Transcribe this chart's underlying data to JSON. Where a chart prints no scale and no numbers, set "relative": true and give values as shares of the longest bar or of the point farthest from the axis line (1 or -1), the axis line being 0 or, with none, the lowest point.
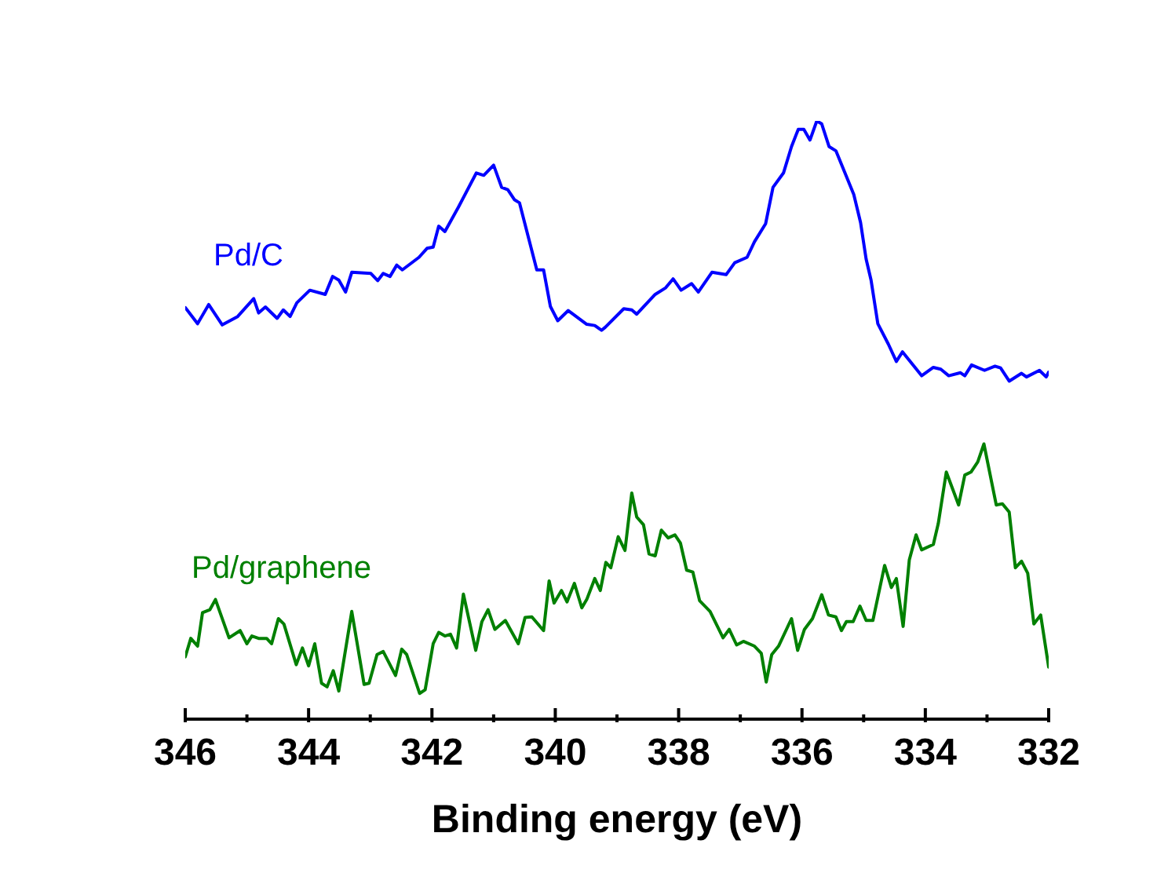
{
  "chart_data": {
    "type": "line",
    "xlabel": "Binding energy (eV)",
    "relative": true,
    "xlim": [
      346,
      332
    ],
    "xticks": [
      346,
      {
        "value": 345,
        "label": null
      },
      344,
      {
        "value": 343,
        "label": null
      },
      342,
      {
        "value": 341,
        "label": null
      },
      340,
      {
        "value": 339,
        "label": null
      },
      338,
      {
        "value": 337,
        "label": null
      },
      336,
      {
        "value": 335,
        "label": null
      },
      334,
      {
        "value": 333,
        "label": null
      },
      332
    ],
    "grid": false,
    "legend": false,
    "marker": "none",
    "line_style": "solid",
    "series": [
      {
        "name": "Pd/C",
        "color": "#0000ff",
        "x": [
          346.0,
          345.8,
          345.62,
          345.4,
          345.15,
          344.89,
          344.81,
          344.7,
          344.51,
          344.41,
          344.3,
          344.19,
          343.98,
          343.73,
          343.61,
          343.51,
          343.4,
          343.3,
          342.99,
          342.88,
          342.79,
          342.68,
          342.57,
          342.48,
          342.21,
          342.08,
          341.98,
          341.89,
          341.79,
          341.57,
          341.28,
          341.16,
          341.0,
          340.87,
          340.77,
          340.66,
          340.58,
          340.3,
          340.19,
          340.08,
          339.96,
          339.79,
          339.49,
          339.36,
          339.25,
          339.19,
          338.89,
          338.76,
          338.68,
          338.38,
          338.21,
          338.09,
          337.96,
          337.79,
          337.68,
          337.46,
          337.23,
          337.09,
          336.89,
          336.77,
          336.59,
          336.47,
          336.3,
          336.17,
          336.06,
          335.97,
          335.87,
          335.76,
          335.68,
          335.56,
          335.45,
          335.16,
          335.05,
          334.96,
          334.88,
          334.77,
          334.6,
          334.47,
          334.37,
          334.06,
          333.87,
          333.75,
          333.62,
          333.43,
          333.36,
          333.25,
          333.04,
          332.87,
          332.78,
          332.64,
          332.44,
          332.36,
          332.15,
          332.04,
          332.0
        ],
        "values": [
          0.688,
          0.661,
          0.693,
          0.659,
          0.673,
          0.703,
          0.679,
          0.689,
          0.67,
          0.684,
          0.673,
          0.696,
          0.717,
          0.71,
          0.74,
          0.734,
          0.714,
          0.747,
          0.745,
          0.733,
          0.745,
          0.74,
          0.759,
          0.751,
          0.772,
          0.787,
          0.789,
          0.824,
          0.815,
          0.856,
          0.913,
          0.909,
          0.926,
          0.889,
          0.885,
          0.868,
          0.863,
          0.751,
          0.751,
          0.69,
          0.666,
          0.683,
          0.66,
          0.658,
          0.65,
          0.655,
          0.686,
          0.684,
          0.677,
          0.71,
          0.721,
          0.736,
          0.717,
          0.728,
          0.714,
          0.747,
          0.743,
          0.763,
          0.772,
          0.798,
          0.828,
          0.889,
          0.913,
          0.957,
          0.986,
          0.986,
          0.968,
          1,
          0.995,
          0.957,
          0.95,
          0.877,
          0.83,
          0.769,
          0.734,
          0.661,
          0.627,
          0.598,
          0.614,
          0.574,
          0.588,
          0.585,
          0.574,
          0.579,
          0.574,
          0.592,
          0.583,
          0.59,
          0.587,
          0.565,
          0.578,
          0.572,
          0.583,
          0.572,
          0.58
        ]
      },
      {
        "name": "Pd/graphene",
        "color": "#008000",
        "x": [
          346.0,
          345.91,
          345.8,
          345.72,
          345.6,
          345.51,
          345.29,
          345.11,
          345.0,
          344.92,
          344.81,
          344.68,
          344.6,
          344.49,
          344.4,
          344.2,
          344.1,
          344.0,
          343.9,
          343.79,
          343.7,
          343.6,
          343.51,
          343.3,
          343.1,
          343.02,
          342.89,
          342.79,
          342.59,
          342.49,
          342.41,
          342.2,
          342.11,
          341.98,
          341.89,
          341.79,
          341.7,
          341.6,
          341.49,
          341.29,
          341.19,
          341.09,
          340.98,
          340.81,
          340.6,
          340.49,
          340.38,
          340.19,
          340.1,
          340.02,
          339.9,
          339.81,
          339.69,
          339.57,
          339.49,
          339.36,
          339.27,
          339.18,
          339.1,
          338.98,
          338.87,
          338.76,
          338.68,
          338.57,
          338.48,
          338.38,
          338.28,
          338.17,
          338.06,
          337.97,
          337.87,
          337.77,
          337.66,
          337.49,
          337.28,
          337.18,
          337.06,
          336.95,
          336.77,
          336.66,
          336.58,
          336.49,
          336.38,
          336.17,
          336.07,
          335.96,
          335.83,
          335.68,
          335.57,
          335.45,
          335.36,
          335.28,
          335.17,
          335.06,
          334.96,
          334.85,
          334.66,
          334.55,
          334.47,
          334.36,
          334.26,
          334.15,
          334.06,
          333.87,
          333.79,
          333.66,
          333.46,
          333.36,
          333.26,
          333.15,
          333.05,
          332.85,
          332.75,
          332.64,
          332.54,
          332.44,
          332.34,
          332.24,
          332.13,
          332.0
        ],
        "values": [
          0.104,
          0.135,
          0.122,
          0.178,
          0.183,
          0.2,
          0.136,
          0.148,
          0.126,
          0.139,
          0.135,
          0.135,
          0.126,
          0.168,
          0.159,
          0.091,
          0.119,
          0.089,
          0.126,
          0.06,
          0.054,
          0.081,
          0.047,
          0.18,
          0.058,
          0.06,
          0.108,
          0.113,
          0.073,
          0.117,
          0.108,
          0.043,
          0.049,
          0.126,
          0.145,
          0.139,
          0.142,
          0.119,
          0.209,
          0.115,
          0.163,
          0.183,
          0.15,
          0.165,
          0.126,
          0.17,
          0.171,
          0.148,
          0.231,
          0.194,
          0.215,
          0.196,
          0.227,
          0.186,
          0.2,
          0.235,
          0.215,
          0.262,
          0.253,
          0.305,
          0.282,
          0.378,
          0.338,
          0.325,
          0.276,
          0.273,
          0.316,
          0.303,
          0.308,
          0.294,
          0.249,
          0.246,
          0.198,
          0.18,
          0.136,
          0.15,
          0.124,
          0.13,
          0.122,
          0.11,
          0.062,
          0.108,
          0.122,
          0.168,
          0.115,
          0.15,
          0.168,
          0.208,
          0.174,
          0.171,
          0.148,
          0.163,
          0.163,
          0.189,
          0.165,
          0.165,
          0.257,
          0.22,
          0.235,
          0.155,
          0.266,
          0.308,
          0.283,
          0.292,
          0.327,
          0.413,
          0.358,
          0.408,
          0.413,
          0.43,
          0.46,
          0.358,
          0.36,
          0.346,
          0.253,
          0.264,
          0.244,
          0.159,
          0.174,
          0.087
        ]
      }
    ]
  }
}
